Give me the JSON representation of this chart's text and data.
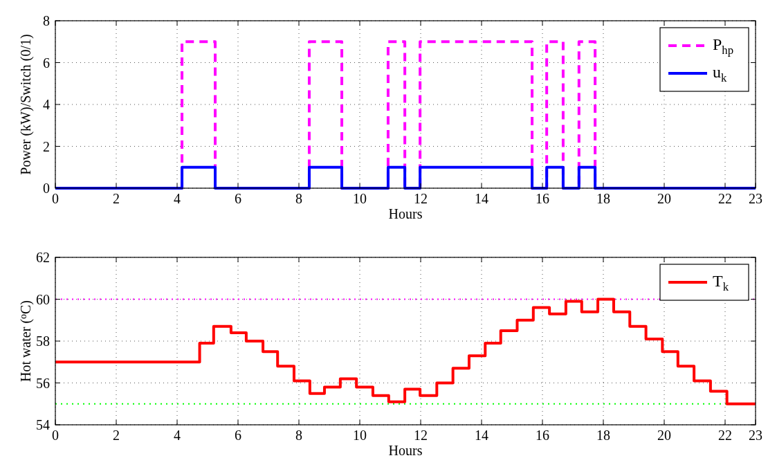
{
  "chart_data": [
    {
      "type": "step",
      "xlabel": "Hours",
      "ylabel": "Power (kW)/Switch (0/1)",
      "xlim": [
        0,
        23
      ],
      "xticks": [
        0,
        2,
        4,
        6,
        8,
        10,
        12,
        14,
        16,
        18,
        20,
        22,
        23
      ],
      "ylim": [
        0,
        8
      ],
      "yticks": [
        0,
        2,
        4,
        6,
        8
      ],
      "grid": true,
      "legend": "top right",
      "series": [
        {
          "name": "P$_{hp}$",
          "color": "#ff00ff",
          "line_style": "dashed",
          "x": [
            0,
            4.16,
            5.25,
            8.34,
            9.41,
            10.93,
            11.48,
            11.98,
            15.66,
            16.14,
            16.68,
            17.2,
            17.73,
            23
          ],
          "values": [
            0,
            7,
            0,
            7,
            0,
            7,
            0,
            7,
            0,
            7,
            0,
            7,
            0,
            0
          ]
        },
        {
          "name": "u$_{k}$",
          "color": "#0000ff",
          "line_style": "solid",
          "x": [
            0,
            4.16,
            5.25,
            8.34,
            9.41,
            10.93,
            11.48,
            11.98,
            15.66,
            16.14,
            16.68,
            17.2,
            17.73,
            23
          ],
          "values": [
            0,
            1,
            0,
            1,
            0,
            1,
            0,
            1,
            0,
            1,
            0,
            1,
            0,
            0
          ]
        }
      ]
    },
    {
      "type": "step",
      "xlabel": "Hours",
      "ylabel": "Hot water ($^{o}$C)",
      "xlim": [
        0,
        23
      ],
      "xticks": [
        0,
        2,
        4,
        6,
        8,
        10,
        12,
        14,
        16,
        18,
        20,
        22,
        23
      ],
      "ylim": [
        54,
        62
      ],
      "yticks": [
        54,
        56,
        58,
        60,
        62
      ],
      "grid": true,
      "legend": "top right",
      "ref_lines": [
        {
          "axis": "y",
          "value": 60,
          "color": "#ff00ff",
          "line_style": "dotted"
        },
        {
          "axis": "y",
          "value": 55,
          "color": "#00ff00",
          "line_style": "dotted"
        }
      ],
      "series": [
        {
          "name": "T$_{k}$",
          "color": "#ff0000",
          "line_style": "solid",
          "x": [
            0,
            4.74,
            5.2,
            5.77,
            6.27,
            6.82,
            7.3,
            7.84,
            8.36,
            8.84,
            9.36,
            9.89,
            10.43,
            10.95,
            11.48,
            11.98,
            12.53,
            13.06,
            13.59,
            14.12,
            14.63,
            15.17,
            15.7,
            16.23,
            16.77,
            17.29,
            17.82,
            18.34,
            18.87,
            19.4,
            19.94,
            20.45,
            20.98,
            21.52,
            22.06,
            23
          ],
          "values": [
            57,
            57.9,
            58.7,
            58.4,
            58,
            57.5,
            56.8,
            56.1,
            55.5,
            55.8,
            56.2,
            55.8,
            55.4,
            55.1,
            55.7,
            55.4,
            56,
            56.7,
            57.3,
            57.9,
            58.5,
            59,
            59.6,
            59.3,
            59.9,
            59.4,
            60,
            59.4,
            58.7,
            58.1,
            57.5,
            56.8,
            56.1,
            55.6,
            55,
            55
          ]
        }
      ]
    }
  ]
}
